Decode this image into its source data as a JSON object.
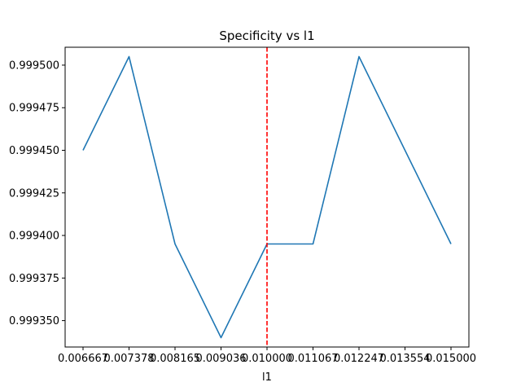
{
  "chart_data": {
    "type": "line",
    "title": "Specificity vs l1",
    "xlabel": "l1",
    "ylabel": "",
    "x": [
      0.006667,
      0.007378,
      0.008165,
      0.009036,
      0.01,
      0.011067,
      0.012247,
      0.013554,
      0.015
    ],
    "x_tick_labels": [
      "0.006667",
      "0.007378",
      "0.008165",
      "0.009036",
      "0.010000",
      "0.011067",
      "0.012247",
      "0.013554",
      "0.015000"
    ],
    "series": [
      {
        "values": [
          0.99945,
          0.999505,
          0.999395,
          0.99934,
          0.999395,
          0.999395,
          0.999505,
          0.99945,
          0.999395
        ],
        "color": "#1f77b4"
      }
    ],
    "y_ticks": [
      0.99935,
      0.999375,
      0.9994,
      0.999425,
      0.99945,
      0.999475,
      0.9995
    ],
    "y_tick_labels": [
      "0.999350",
      "0.999375",
      "0.999400",
      "0.999425",
      "0.999450",
      "0.999475",
      "0.999500"
    ],
    "ylim": [
      0.9993345,
      0.9995105
    ],
    "x_scale": "categorical-evenly-spaced",
    "vline": {
      "x": 0.01,
      "color": "#ff0000",
      "style": "dashed"
    },
    "grid": false,
    "legend": "none"
  }
}
